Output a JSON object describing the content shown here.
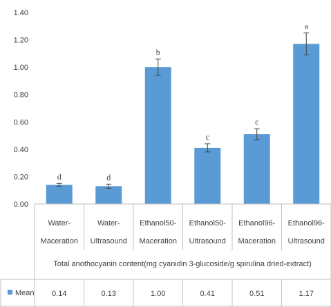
{
  "chart_data": {
    "type": "bar",
    "categories": [
      [
        "Water-",
        "Maceration"
      ],
      [
        "Water-",
        "Ultrasound"
      ],
      [
        "Ethanol50-",
        "Maceration"
      ],
      [
        "Ethanol50-",
        "Ultrasound"
      ],
      [
        "Ethanol96-",
        "Maceration"
      ],
      [
        "Ethanol96-",
        "Ultrasound"
      ]
    ],
    "series": [
      {
        "name": "Mean",
        "values": [
          0.14,
          0.13,
          1.0,
          0.41,
          0.51,
          1.17
        ],
        "labels": [
          "0.14",
          "0.13",
          "1.00",
          "0.41",
          "0.51",
          "1.17"
        ],
        "errors": [
          0.01,
          0.015,
          0.06,
          0.03,
          0.04,
          0.08
        ],
        "significance": [
          "d",
          "d",
          "b",
          "c",
          "c",
          "a"
        ],
        "color": "#5b9bd5"
      }
    ],
    "xlabel": "Total anothocyanin content(mg cyanidin 3-glucoside/g spirulina dried-extract)",
    "ylabel": "",
    "ylim": [
      0,
      1.4
    ],
    "yticks": [
      "0.00",
      "0.20",
      "0.40",
      "0.60",
      "0.80",
      "1.00",
      "1.20",
      "1.40"
    ],
    "grid": false,
    "legend": "data-table",
    "colors": {
      "bar": "#5b9bd5",
      "error": "#404040",
      "axis": "#bfbfbf",
      "text": "#404040"
    }
  }
}
